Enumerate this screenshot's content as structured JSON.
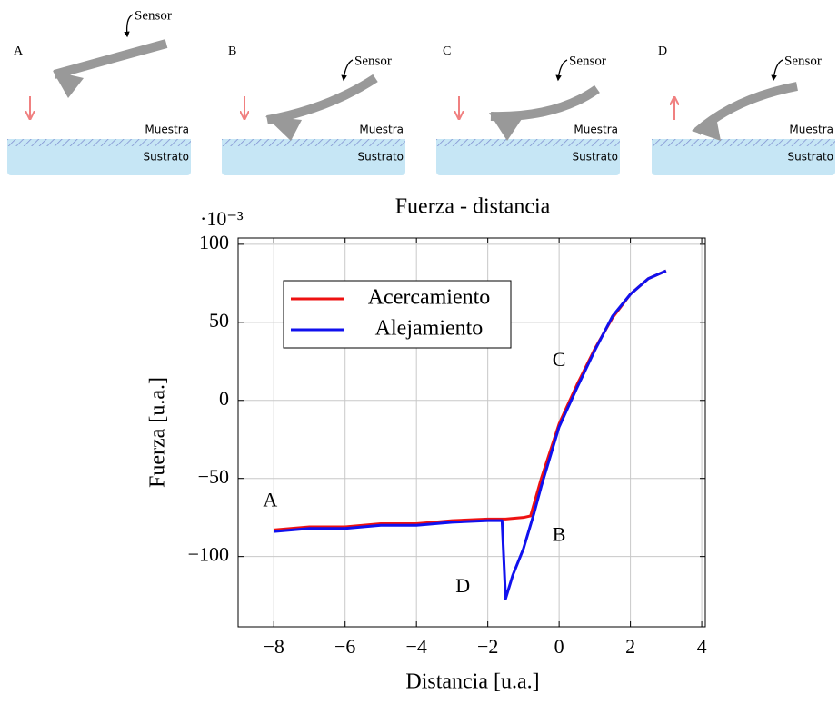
{
  "panels": [
    {
      "label": "A",
      "sensor": "Sensor",
      "sample": "Muestra",
      "substrate": "Sustrato"
    },
    {
      "label": "B",
      "sensor": "Sensor",
      "sample": "Muestra",
      "substrate": "Sustrato"
    },
    {
      "label": "C",
      "sensor": "Sensor",
      "sample": "Muestra",
      "substrate": "Sustrato"
    },
    {
      "label": "D",
      "sensor": "Sensor",
      "sample": "Muestra",
      "substrate": "Sustrato"
    }
  ],
  "chart_data": {
    "type": "line",
    "title": "Fuerza - distancia",
    "y_scale_label": "·10⁻³",
    "x_label": "Distancia [u.a.]",
    "y_label": "Fuerza [u.a.]",
    "series": [
      {
        "name": "Acercamiento",
        "color": "#ee1111",
        "x": [
          -8,
          -7,
          -6,
          -5,
          -4,
          -3,
          -2,
          -1.5,
          -1,
          -0.8,
          -0.5,
          0,
          0.5,
          1,
          1.5,
          2,
          2.5,
          3
        ],
        "values": [
          -83,
          -81,
          -81,
          -79,
          -79,
          -77,
          -76,
          -76,
          -75,
          -74,
          -50,
          -15,
          10,
          33,
          53,
          68,
          78,
          83
        ]
      },
      {
        "name": "Alejamiento",
        "color": "#1111ee",
        "x": [
          -8,
          -7,
          -6,
          -5,
          -4,
          -3,
          -2,
          -1.6,
          -1.5,
          -1.3,
          -1,
          -0.7,
          -0.5,
          0,
          0.5,
          1,
          1.5,
          2,
          2.5,
          3
        ],
        "values": [
          -84,
          -82,
          -82,
          -80,
          -80,
          -78,
          -77,
          -77,
          -127,
          -112,
          -95,
          -72,
          -55,
          -17,
          8,
          32,
          54,
          68,
          78,
          83
        ]
      }
    ],
    "annotations": [
      "A",
      "B",
      "C",
      "D"
    ],
    "xlim": [
      -9,
      4.1
    ],
    "ylim": [
      -145,
      104
    ],
    "xticks": [
      {
        "value": -8,
        "label": "−8"
      },
      {
        "value": -6,
        "label": "−6"
      },
      {
        "value": -4,
        "label": "−4"
      },
      {
        "value": -2,
        "label": "−2"
      },
      0,
      2,
      4
    ],
    "yticks": [
      {
        "value": -100,
        "label": "−100"
      },
      {
        "value": -50,
        "label": "−50"
      },
      0,
      50,
      100
    ],
    "grid": true,
    "legend": "upper left"
  }
}
